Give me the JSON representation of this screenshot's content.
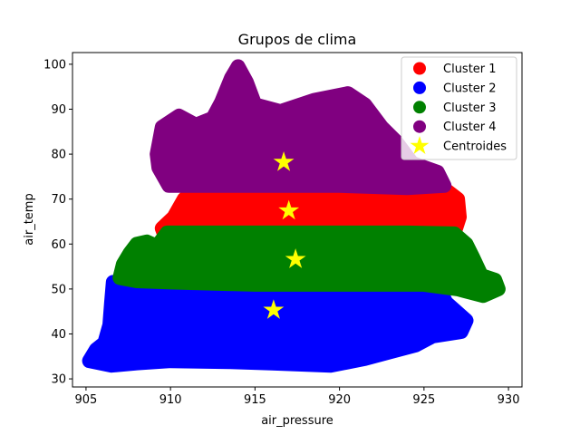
{
  "chart_data": {
    "type": "scatter",
    "title": "Grupos de clima",
    "xlabel": "air_pressure",
    "ylabel": "air_temp",
    "xlim": [
      904.2,
      930.8
    ],
    "ylim": [
      28.2,
      102.6
    ],
    "xticks": [
      905,
      910,
      915,
      920,
      925,
      930
    ],
    "yticks": [
      30,
      40,
      50,
      60,
      70,
      80,
      90,
      100
    ],
    "grid": false,
    "legend_position": "top-right",
    "series": [
      {
        "name": "Cluster 1",
        "color": "#ff0000",
        "marker": "circle",
        "region": [
          [
            909.5,
            63.5
          ],
          [
            910.2,
            66
          ],
          [
            910.8,
            70
          ],
          [
            911.5,
            72.5
          ],
          [
            916,
            73
          ],
          [
            920,
            73
          ],
          [
            924,
            72.5
          ],
          [
            926.3,
            72
          ],
          [
            927,
            70
          ],
          [
            927.1,
            66
          ],
          [
            926.8,
            62.5
          ],
          [
            923,
            62.5
          ],
          [
            918,
            62.5
          ],
          [
            913,
            62.5
          ],
          [
            909.6,
            62.5
          ]
        ]
      },
      {
        "name": "Cluster 2",
        "color": "#0000ff",
        "marker": "circle",
        "region": [
          [
            905.2,
            34
          ],
          [
            905.6,
            36.5
          ],
          [
            906.1,
            38
          ],
          [
            906.4,
            42
          ],
          [
            906.5,
            47
          ],
          [
            906.6,
            51.5
          ],
          [
            910,
            51
          ],
          [
            915,
            50.8
          ],
          [
            920,
            50.8
          ],
          [
            924,
            50.5
          ],
          [
            926,
            49.5
          ],
          [
            926.3,
            47
          ],
          [
            927.2,
            44
          ],
          [
            927.5,
            43
          ],
          [
            927.2,
            40.5
          ],
          [
            925.5,
            39.5
          ],
          [
            924.5,
            37.5
          ],
          [
            923,
            36
          ],
          [
            921.5,
            34.5
          ],
          [
            919.5,
            33
          ],
          [
            916,
            33.5
          ],
          [
            913.5,
            33.8
          ],
          [
            910,
            34
          ],
          [
            908,
            33.5
          ],
          [
            906.5,
            33
          ],
          [
            905.2,
            34
          ]
        ]
      },
      {
        "name": "Cluster 3",
        "color": "#008000",
        "marker": "circle",
        "region": [
          [
            907,
            52.5
          ],
          [
            907.2,
            55.5
          ],
          [
            907.6,
            58
          ],
          [
            908,
            60
          ],
          [
            908.6,
            60.5
          ],
          [
            909.2,
            59.5
          ],
          [
            909.8,
            62.5
          ],
          [
            914,
            62.5
          ],
          [
            920,
            62.5
          ],
          [
            924,
            62.5
          ],
          [
            926.8,
            62.3
          ],
          [
            927.5,
            60
          ],
          [
            927.9,
            57
          ],
          [
            928.4,
            53
          ],
          [
            929.2,
            52
          ],
          [
            929.4,
            50
          ],
          [
            928.5,
            48.5
          ],
          [
            927,
            50
          ],
          [
            925,
            51
          ],
          [
            920,
            51
          ],
          [
            915,
            51
          ],
          [
            910,
            51.5
          ],
          [
            908,
            51.8
          ],
          [
            907,
            52.5
          ]
        ]
      },
      {
        "name": "Cluster 4",
        "color": "#800080",
        "marker": "circle",
        "region": [
          [
            909.9,
            73
          ],
          [
            909.3,
            77
          ],
          [
            909.2,
            80
          ],
          [
            909.5,
            86
          ],
          [
            910.5,
            88.5
          ],
          [
            911.5,
            86.5
          ],
          [
            912.5,
            88
          ],
          [
            913,
            91.5
          ],
          [
            913.6,
            97
          ],
          [
            914,
            99.5
          ],
          [
            914.5,
            96
          ],
          [
            915,
            91
          ],
          [
            916.5,
            89.5
          ],
          [
            918.5,
            92
          ],
          [
            920.5,
            93.5
          ],
          [
            921.5,
            91
          ],
          [
            922.5,
            86
          ],
          [
            923.3,
            83
          ],
          [
            924.3,
            78
          ],
          [
            925.8,
            76
          ],
          [
            926.2,
            73
          ],
          [
            924,
            72.5
          ],
          [
            920,
            73
          ],
          [
            916,
            73
          ],
          [
            912,
            73
          ],
          [
            909.9,
            73
          ]
        ]
      },
      {
        "name": "Centroides",
        "color": "#ffff00",
        "marker": "star",
        "points": [
          [
            916.7,
            78.2
          ],
          [
            917.0,
            67.4
          ],
          [
            917.4,
            56.6
          ],
          [
            916.1,
            45.3
          ]
        ]
      }
    ]
  }
}
